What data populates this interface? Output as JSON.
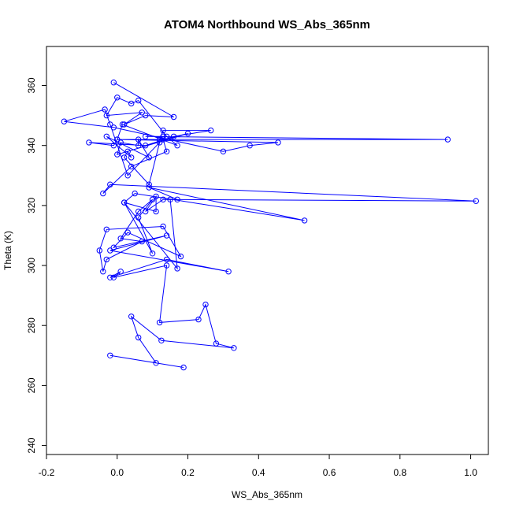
{
  "chart_data": {
    "type": "line",
    "title": "ATOM4 Northbound WS_Abs_365nm",
    "xlabel": "WS_Abs_365nm",
    "ylabel": "Theta (K)",
    "xlim": [
      -0.2,
      1.05
    ],
    "ylim": [
      237,
      373
    ],
    "x_ticks": [
      -0.2,
      0.0,
      0.2,
      0.4,
      0.6,
      0.8,
      1.0
    ],
    "x_tick_labels": [
      "-0.2",
      "0.0",
      "0.2",
      "0.4",
      "0.6",
      "0.8",
      "1.0"
    ],
    "y_ticks": [
      240,
      260,
      280,
      300,
      320,
      340,
      360
    ],
    "y_tick_labels": [
      "240",
      "260",
      "280",
      "300",
      "320",
      "340",
      "360"
    ],
    "grid": false,
    "legend": "none",
    "series_color": "#0000ff",
    "marker": "open-circle",
    "series": [
      {
        "x": [
          0.188,
          -0.02,
          0.11,
          0.06,
          0.04,
          0.125,
          0.33,
          0.28,
          0.25,
          0.23,
          0.12,
          0.14,
          -0.01,
          0.01,
          -0.02,
          0.14,
          0.315,
          -0.02,
          0.14,
          -0.01,
          0.03,
          0.18,
          0.13,
          -0.03,
          -0.05,
          -0.04,
          -0.03,
          0.07,
          0.01,
          0.06,
          0.1,
          0.06,
          0.1,
          0.02,
          0.11,
          0.11,
          0.08,
          0.13,
          0.17,
          0.09,
          0.53,
          0.05,
          0.02,
          0.17,
          0.15,
          1.015,
          -0.02,
          -0.04,
          0.04,
          0.14,
          0.13,
          0.2,
          0.0,
          0.01,
          0.06,
          0.06,
          0.09,
          -0.03,
          0.04,
          0.03,
          0.02,
          0.09,
          0.12,
          0.03,
          -0.02,
          -0.035,
          -0.15,
          -0.01,
          0.3,
          0.375,
          0.455,
          0.0,
          0.935,
          0.08,
          0.13,
          0.12,
          0.13,
          0.265,
          0.16,
          0.08,
          -0.08,
          -0.01,
          0.0,
          0.015,
          0.17,
          0.14,
          0.06,
          0.04,
          0.0,
          -0.03,
          0.07,
          0.02,
          0.08,
          0.16,
          -0.01
        ],
        "y": [
          266,
          270,
          267.5,
          276,
          283,
          275,
          272.5,
          274,
          287,
          282,
          281,
          300,
          296,
          298,
          296,
          302,
          298,
          305,
          310,
          306,
          311,
          303,
          313,
          312,
          305,
          298,
          302,
          308,
          309,
          318,
          322,
          316,
          304,
          321,
          318,
          323,
          318,
          322,
          322,
          326,
          315,
          324,
          321,
          299,
          322,
          321.5,
          327,
          324,
          333,
          338,
          342,
          344,
          337,
          341,
          340,
          342,
          336,
          343,
          336,
          338,
          336,
          327,
          341,
          330,
          347,
          352,
          348,
          346,
          338,
          340,
          341,
          342,
          342,
          343,
          343,
          342,
          345,
          345,
          343,
          340,
          341,
          340,
          342,
          347,
          340,
          343,
          355,
          354,
          356,
          350,
          351,
          347,
          350,
          349.5,
          361
        ]
      }
    ]
  }
}
